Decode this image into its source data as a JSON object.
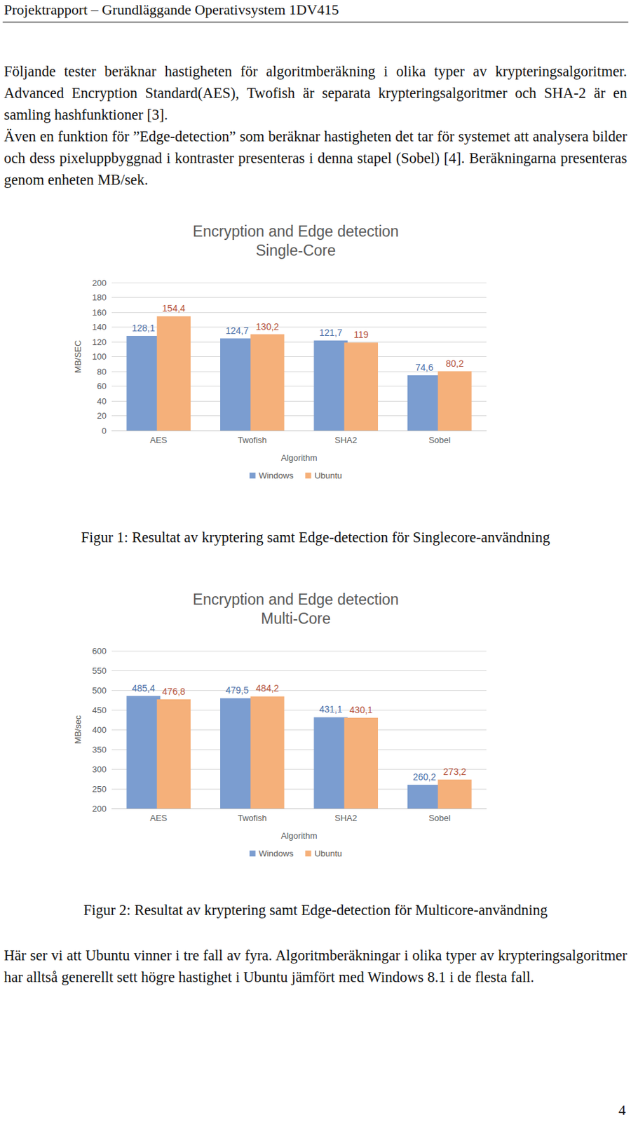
{
  "document": {
    "header": "Projektrapport – Grundläggande Operativsystem 1DV415",
    "intro": [
      "Följande tester beräknar hastigheten för algoritmberäkning i olika typer av krypteringsalgoritmer. Advanced Encryption Standard(AES), Twofish är separata krypteringsalgoritmer och SHA-2 är en samling hashfunktioner [3].",
      "Även en funktion för ”Edge-detection” som beräknar hastigheten det tar för systemet att analysera bilder och dess pixeluppbyggnad i kontraster presenteras i denna stapel (Sobel) [4]. Beräkningarna presenteras genom enheten MB/sek."
    ],
    "figure_captions": [
      "Figur 1: Resultat av kryptering samt Edge-detection för Singlecore-användning",
      "Figur 2: Resultat av kryptering samt Edge-detection för Multicore-användning"
    ],
    "conclusion": "Här ser vi att Ubuntu vinner i tre fall av fyra. Algoritmberäkningar i olika typer av krypteringsalgoritmer har alltså generellt sett högre hastighet i Ubuntu jämfört med Windows 8.1 i de flesta fall.",
    "page_number": "4"
  },
  "chart_data": [
    {
      "type": "bar",
      "title": "Encryption and Edge detection",
      "subtitle": "Single-Core",
      "x_label": "Algorithm",
      "y_label": "MB/SEC",
      "categories": [
        "AES",
        "Twofish",
        "SHA2",
        "Sobel"
      ],
      "series": [
        {
          "name": "Windows",
          "color": "#7b9dd0",
          "values": [
            128.1,
            124.7,
            121.7,
            74.6
          ],
          "value_labels": [
            "128,1",
            "124,7",
            "121,7",
            "74,6"
          ]
        },
        {
          "name": "Ubuntu",
          "color": "#f5b07a",
          "values": [
            154.4,
            130.2,
            119,
            80.2
          ],
          "value_labels": [
            "154,4",
            "130,2",
            "119",
            "80,2"
          ]
        }
      ],
      "ylim": [
        0,
        200
      ],
      "yticks": [
        0,
        20,
        40,
        60,
        80,
        100,
        120,
        140,
        160,
        180,
        200
      ],
      "grid": true,
      "legend": "bottom",
      "data_labels": true
    },
    {
      "type": "bar",
      "title": "Encryption and Edge detection",
      "subtitle": "Multi-Core",
      "x_label": "Algorithm",
      "y_label": "MB/sec",
      "categories": [
        "AES",
        "Twofish",
        "SHA2",
        "Sobel"
      ],
      "series": [
        {
          "name": "Windows",
          "color": "#7b9dd0",
          "values": [
            485.4,
            479.5,
            431.1,
            260.2
          ],
          "value_labels": [
            "485,4",
            "479,5",
            "431,1",
            "260,2"
          ]
        },
        {
          "name": "Ubuntu",
          "color": "#f5b07a",
          "values": [
            476.8,
            484.2,
            430.1,
            273.2
          ],
          "value_labels": [
            "476,8",
            "484,2",
            "430,1",
            "273,2"
          ]
        }
      ],
      "ylim": [
        200,
        600
      ],
      "yticks": [
        200,
        250,
        300,
        350,
        400,
        450,
        500,
        550,
        600
      ],
      "grid": true,
      "legend": "bottom",
      "data_labels": true
    }
  ]
}
